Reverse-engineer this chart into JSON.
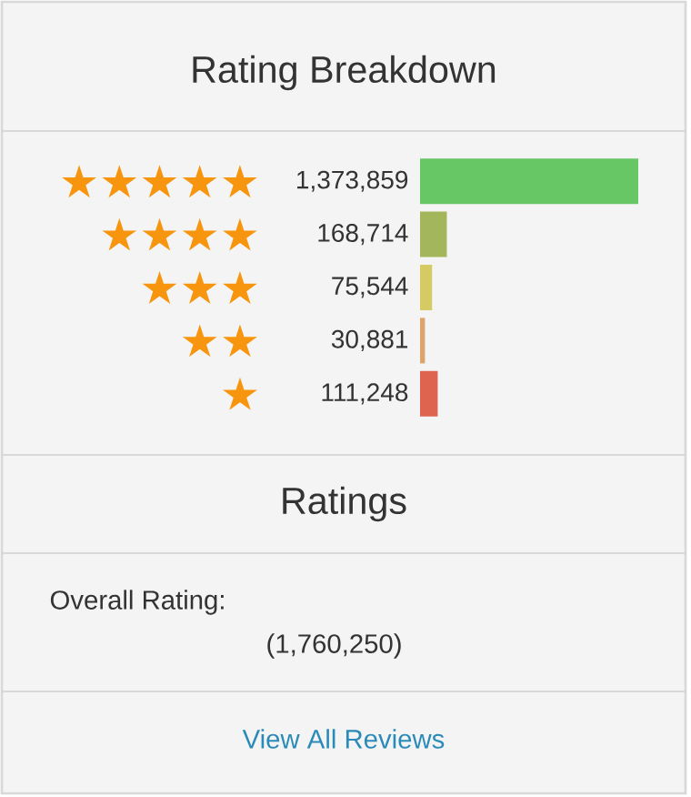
{
  "chart_data": {
    "type": "bar",
    "orientation": "horizontal",
    "title": "Rating Breakdown",
    "categories": [
      "★★★★★",
      "★★★★",
      "★★★",
      "★★",
      "★"
    ],
    "values": [
      1373859,
      168714,
      75544,
      30881,
      111248
    ],
    "colors": [
      "#66c764",
      "#a4b65c",
      "#d6cb62",
      "#dca46a",
      "#de644f"
    ],
    "value_labels": [
      "1,373,859",
      "168,714",
      "75,544",
      "30,881",
      "111,248"
    ],
    "annotations": [
      "Ratings",
      "Overall Rating:",
      "(1,760,250)",
      "View All Reviews"
    ]
  }
}
